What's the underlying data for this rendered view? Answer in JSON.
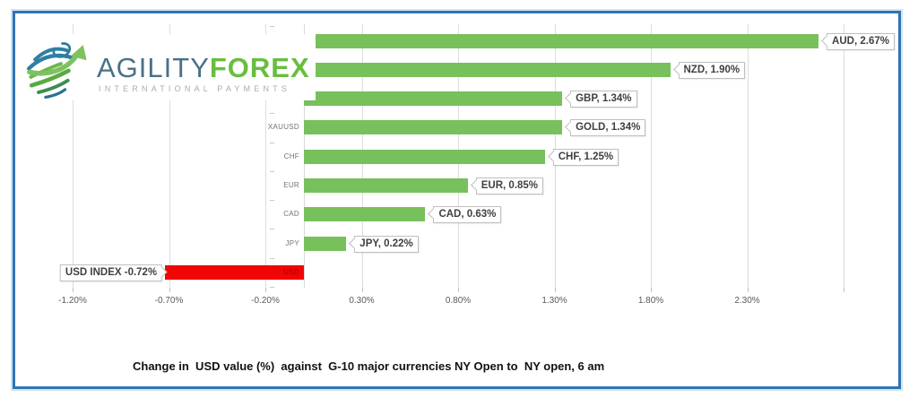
{
  "frame": {
    "border_color": "#2E75B6"
  },
  "logo": {
    "brand_primary": "AGILITY",
    "brand_secondary": "FOREX",
    "tagline": "INTERNATIONAL PAYMENTS",
    "colors": {
      "primary": "#4A7187",
      "secondary": "#68BE3F",
      "tagline": "#A9ACAE"
    },
    "icon": "globe-arrow-icon"
  },
  "caption": "Change in  USD value (%)  against  G-10 major currencies NY Open to  NY open, 6 am",
  "chart_data": {
    "type": "bar",
    "orientation": "horizontal",
    "title": "Change in  USD value (%)  against  G-10 major currencies NY Open to  NY open, 6 am",
    "categories": [
      "AUD",
      "NZD",
      "GBP",
      "XAUUSD",
      "CHF",
      "EUR",
      "CAD",
      "JPY",
      "USD"
    ],
    "values": [
      2.67,
      1.9,
      1.34,
      1.34,
      1.25,
      0.85,
      0.63,
      0.22,
      -0.72
    ],
    "data_labels": [
      "AUD, 2.67%",
      "NZD, 1.90%",
      "GBP, 1.34%",
      "GOLD, 1.34%",
      "CHF, 1.25%",
      "EUR, 0.85%",
      "CAD, 0.63%",
      "JPY, 0.22%",
      "USD INDEX -0.72%"
    ],
    "bar_colors": {
      "positive": "#78C05B",
      "negative": "#F20505"
    },
    "axis": {
      "min": -1.2,
      "max": 3.05,
      "tick_step": 0.5,
      "tick_values": [
        -1.2,
        -0.7,
        -0.2,
        0.3,
        0.8,
        1.3,
        1.8,
        2.3,
        2.8
      ],
      "tick_labels": [
        "-1.20%",
        "-0.70%",
        "-0.20%",
        "0.30%",
        "0.80%",
        "1.30%",
        "1.80%",
        "2.30%",
        ""
      ]
    },
    "grid": true,
    "legend": "none",
    "xlabel": "",
    "ylabel": ""
  }
}
